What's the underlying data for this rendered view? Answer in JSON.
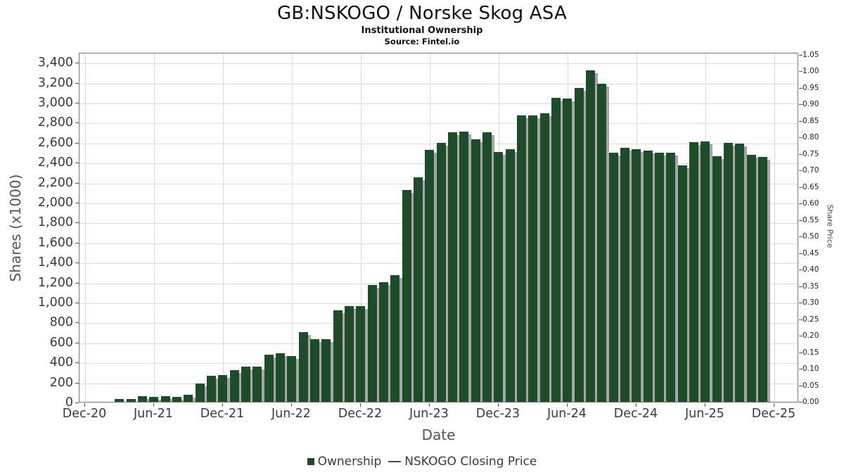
{
  "header": {
    "title": "GB:NSKOGO / Norske Skog ASA",
    "subtitle": "Institutional Ownership",
    "source": "Source: Fintel.io"
  },
  "chart_data": {
    "type": "bar",
    "title": "GB:NSKOGO / Norske Skog ASA",
    "subtitle": "Institutional Ownership",
    "source": "Source: Fintel.io",
    "xlabel": "Date",
    "ylabel_left": "Shares (x1000)",
    "ylabel_right": "Share Price",
    "grid": true,
    "ylim_left": [
      0,
      3500
    ],
    "ylim_right": [
      0,
      1.05
    ],
    "y_left_ticks": [
      0,
      200,
      400,
      600,
      800,
      1000,
      1200,
      1400,
      1600,
      1800,
      2000,
      2200,
      2400,
      2600,
      2800,
      3000,
      3200,
      3400
    ],
    "y_right_ticks": [
      0.0,
      0.05,
      0.1,
      0.15,
      0.2,
      0.25,
      0.3,
      0.35,
      0.4,
      0.45,
      0.5,
      0.55,
      0.6,
      0.65,
      0.7,
      0.75,
      0.8,
      0.85,
      0.9,
      0.95,
      1.0,
      1.05
    ],
    "x_tick_labels": [
      "Dec-20",
      "Jun-21",
      "Dec-21",
      "Jun-22",
      "Dec-22",
      "Jun-23",
      "Dec-23",
      "Jun-24",
      "Dec-24",
      "Jun-25",
      "Dec-25"
    ],
    "bar_color": "#1e4b29",
    "shadow_color": "#a6a6a6",
    "legend": [
      {
        "label": "Ownership",
        "swatch": "square",
        "color": "#1e4b29"
      },
      {
        "label": "NSKOGO Closing Price",
        "swatch": "line",
        "color": "#4a4a4a"
      }
    ],
    "series": [
      {
        "name": "Ownership",
        "unit": "shares x1000",
        "first_month_offset_from_dec20": 3,
        "points": [
          {
            "month": "Mar-21",
            "value": 30
          },
          {
            "month": "Apr-21",
            "value": 25
          },
          {
            "month": "May-21",
            "value": 55
          },
          {
            "month": "Jun-21",
            "value": 50
          },
          {
            "month": "Jul-21",
            "value": 55
          },
          {
            "month": "Aug-21",
            "value": 50
          },
          {
            "month": "Sep-21",
            "value": 70
          },
          {
            "month": "Oct-21",
            "value": 185
          },
          {
            "month": "Nov-21",
            "value": 260
          },
          {
            "month": "Dec-21",
            "value": 265
          },
          {
            "month": "Jan-22",
            "value": 315
          },
          {
            "month": "Feb-22",
            "value": 350
          },
          {
            "month": "Mar-22",
            "value": 350
          },
          {
            "month": "Apr-22",
            "value": 470
          },
          {
            "month": "May-22",
            "value": 485
          },
          {
            "month": "Jun-22",
            "value": 455
          },
          {
            "month": "Jul-22",
            "value": 695
          },
          {
            "month": "Aug-22",
            "value": 625
          },
          {
            "month": "Sep-22",
            "value": 630
          },
          {
            "month": "Oct-22",
            "value": 915
          },
          {
            "month": "Nov-22",
            "value": 955
          },
          {
            "month": "Dec-22",
            "value": 955
          },
          {
            "month": "Jan-23",
            "value": 1170
          },
          {
            "month": "Feb-23",
            "value": 1195
          },
          {
            "month": "Mar-23",
            "value": 1270
          },
          {
            "month": "Apr-23",
            "value": 2120
          },
          {
            "month": "May-23",
            "value": 2245
          },
          {
            "month": "Jun-23",
            "value": 2520
          },
          {
            "month": "Jul-23",
            "value": 2595
          },
          {
            "month": "Aug-23",
            "value": 2700
          },
          {
            "month": "Sep-23",
            "value": 2705
          },
          {
            "month": "Oct-23",
            "value": 2630
          },
          {
            "month": "Nov-23",
            "value": 2695
          },
          {
            "month": "Dec-23",
            "value": 2500
          },
          {
            "month": "Jan-24",
            "value": 2530
          },
          {
            "month": "Feb-24",
            "value": 2865
          },
          {
            "month": "Mar-24",
            "value": 2865
          },
          {
            "month": "Apr-24",
            "value": 2890
          },
          {
            "month": "May-24",
            "value": 3045
          },
          {
            "month": "Jun-24",
            "value": 3035
          },
          {
            "month": "Jul-24",
            "value": 3140
          },
          {
            "month": "Aug-24",
            "value": 3320
          },
          {
            "month": "Sep-24",
            "value": 3180
          },
          {
            "month": "Oct-24",
            "value": 2490
          },
          {
            "month": "Nov-24",
            "value": 2545
          },
          {
            "month": "Dec-24",
            "value": 2530
          },
          {
            "month": "Jan-25",
            "value": 2515
          },
          {
            "month": "Feb-25",
            "value": 2495
          },
          {
            "month": "Mar-25",
            "value": 2495
          },
          {
            "month": "Apr-25",
            "value": 2365
          },
          {
            "month": "May-25",
            "value": 2600
          },
          {
            "month": "Jun-25",
            "value": 2605
          },
          {
            "month": "Jul-25",
            "value": 2460
          },
          {
            "month": "Aug-25",
            "value": 2595
          },
          {
            "month": "Sep-25",
            "value": 2585
          },
          {
            "month": "Oct-25",
            "value": 2475
          },
          {
            "month": "Nov-25",
            "value": 2450
          }
        ]
      }
    ]
  }
}
